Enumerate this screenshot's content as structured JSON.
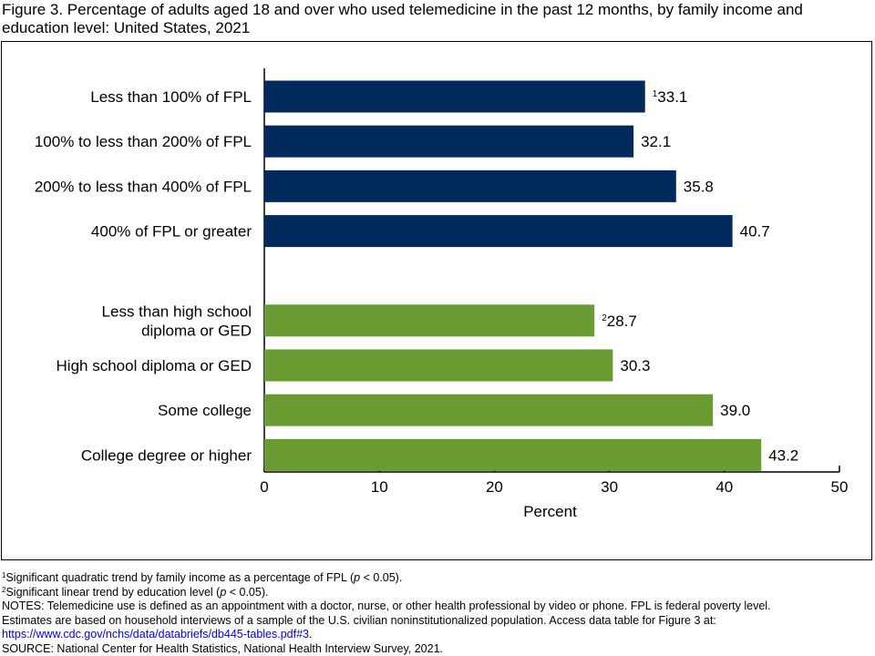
{
  "figure_title": "Figure 3. Percentage of adults aged 18 and over who used telemedicine in the past 12 months, by family income and education level: United States, 2021",
  "chart_data": {
    "type": "bar",
    "orientation": "horizontal",
    "xlabel": "Percent",
    "xlim": [
      0,
      50
    ],
    "xticks": [
      0,
      10,
      20,
      30,
      40,
      50
    ],
    "grid": false,
    "groups": [
      {
        "color": "#002a5c",
        "bars": [
          {
            "label": [
              "Less than 100% of FPL"
            ],
            "value": 33.1,
            "value_label": "33.1",
            "marker": "1"
          },
          {
            "label": [
              "100% to less than 200% of FPL"
            ],
            "value": 32.1,
            "value_label": "32.1",
            "marker": ""
          },
          {
            "label": [
              "200% to less than 400% of FPL"
            ],
            "value": 35.8,
            "value_label": "35.8",
            "marker": ""
          },
          {
            "label": [
              "400% of FPL or greater"
            ],
            "value": 40.7,
            "value_label": "40.7",
            "marker": ""
          }
        ]
      },
      {
        "color": "#6a9a32",
        "bars": [
          {
            "label": [
              "Less than high school",
              "diploma or GED"
            ],
            "value": 28.7,
            "value_label": "28.7",
            "marker": "2"
          },
          {
            "label": [
              "High school diploma or GED"
            ],
            "value": 30.3,
            "value_label": "30.3",
            "marker": ""
          },
          {
            "label": [
              "Some college"
            ],
            "value": 39.0,
            "value_label": "39.0",
            "marker": ""
          },
          {
            "label": [
              "College degree or higher"
            ],
            "value": 43.2,
            "value_label": "43.2",
            "marker": ""
          }
        ]
      }
    ]
  },
  "footnotes": {
    "note1_marker": "1",
    "note1_a": "Significant quadratic trend by family income as a percentage of FPL (",
    "note1_p": "p",
    "note1_b": " < 0.05).",
    "note2_marker": "2",
    "note2_a": "Significant linear trend by education level (",
    "note2_p": "p",
    "note2_b": " < 0.05).",
    "notes_line1": "NOTES: Telemedicine use is defined as an appointment with a doctor, nurse, or other health professional by video or phone. FPL is federal poverty level.",
    "notes_line2": "Estimates are based on household interviews of a sample of the U.S. civilian noninstitutionalized population. Access data table for Figure 3 at:",
    "link": "https://www.cdc.gov/nchs/data/databriefs/db445-tables.pdf#3",
    "link_suffix": ".",
    "source": "SOURCE: National Center for Health Statistics, National Health Interview Survey, 2021."
  }
}
